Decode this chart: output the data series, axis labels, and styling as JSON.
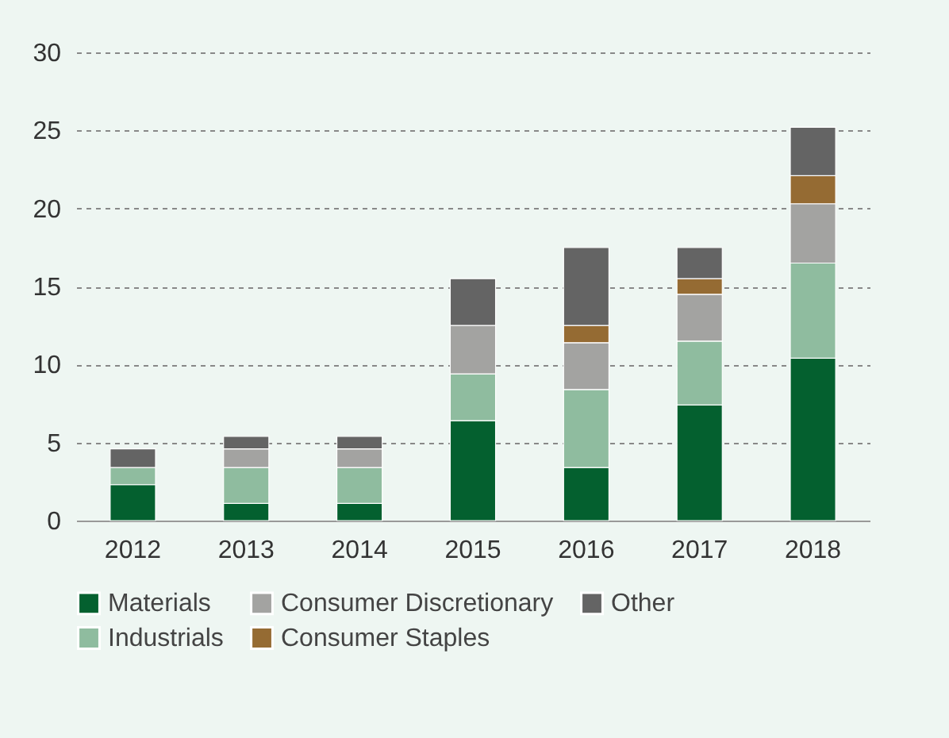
{
  "chart_data": {
    "type": "bar",
    "stacked": true,
    "categories": [
      "2012",
      "2013",
      "2014",
      "2015",
      "2016",
      "2017",
      "2018"
    ],
    "series": [
      {
        "name": "Materials",
        "color": "#04602f",
        "values": [
          2.3,
          1.1,
          1.1,
          6.4,
          3.4,
          7.4,
          10.4
        ]
      },
      {
        "name": "Industrials",
        "color": "#8fbc9f",
        "values": [
          1.1,
          2.3,
          2.3,
          3.0,
          5.0,
          4.1,
          6.1
        ]
      },
      {
        "name": "Consumer Discretionary",
        "color": "#a3a3a1",
        "values": [
          null,
          1.2,
          1.2,
          3.1,
          3.0,
          3.0,
          3.8
        ]
      },
      {
        "name": "Consumer Staples",
        "color": "#956b33",
        "values": [
          null,
          null,
          null,
          null,
          1.1,
          1.0,
          1.8
        ]
      },
      {
        "name": "Other",
        "color": "#646464",
        "values": [
          1.2,
          0.8,
          0.8,
          3.0,
          5.0,
          2.0,
          3.1
        ]
      }
    ],
    "ylim": [
      0,
      30
    ],
    "yticks": [
      0,
      5,
      10,
      15,
      20,
      25,
      30
    ],
    "grid": "y",
    "legend": "bottom"
  }
}
